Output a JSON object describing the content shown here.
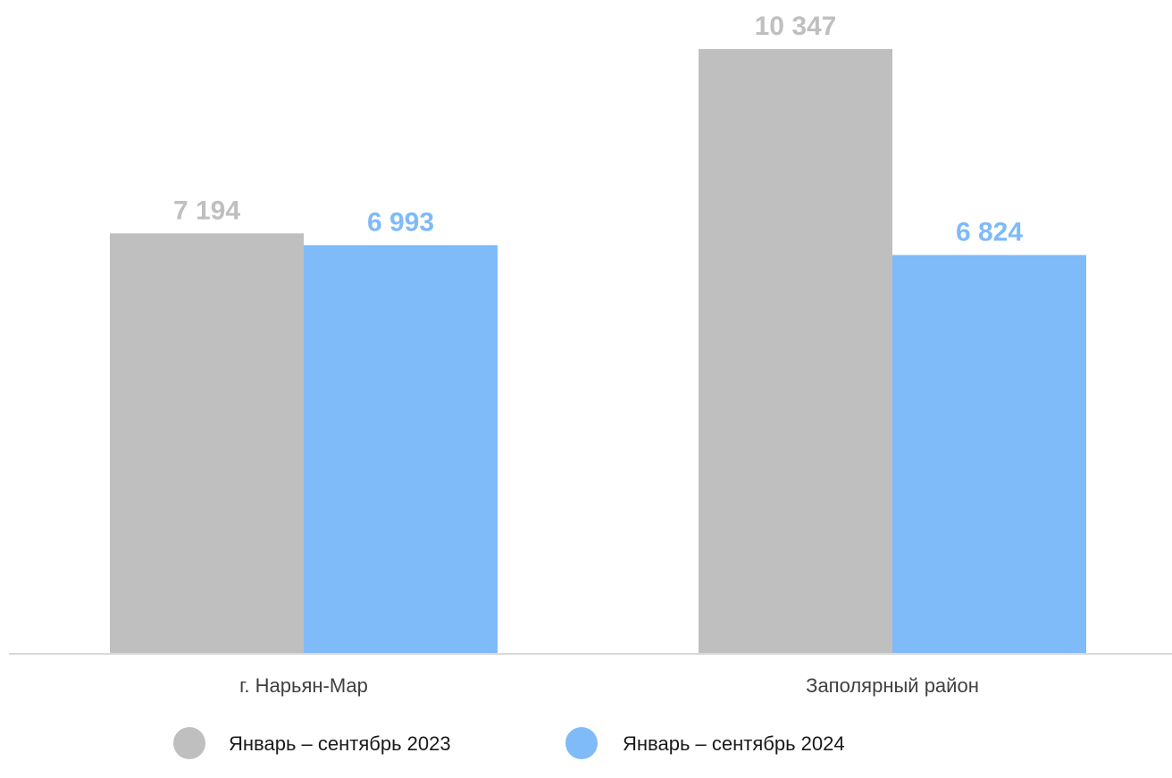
{
  "chart_data": {
    "type": "bar",
    "categories": [
      "г. Нарьян-Мар",
      "Заполярный район"
    ],
    "series": [
      {
        "name": "Январь – сентябрь 2023",
        "values": [
          7194,
          10347
        ],
        "value_labels": [
          "7 194",
          "10 347"
        ],
        "color": "#bfbfbf"
      },
      {
        "name": "Январь – сентябрь 2024",
        "values": [
          6993,
          6824
        ],
        "value_labels": [
          "6 993",
          "6 824"
        ],
        "color": "#7fbaf9"
      }
    ],
    "ylim": [
      0,
      10500
    ],
    "grid": false,
    "legend_position": "bottom",
    "axis_color": "#d9d9d9"
  }
}
